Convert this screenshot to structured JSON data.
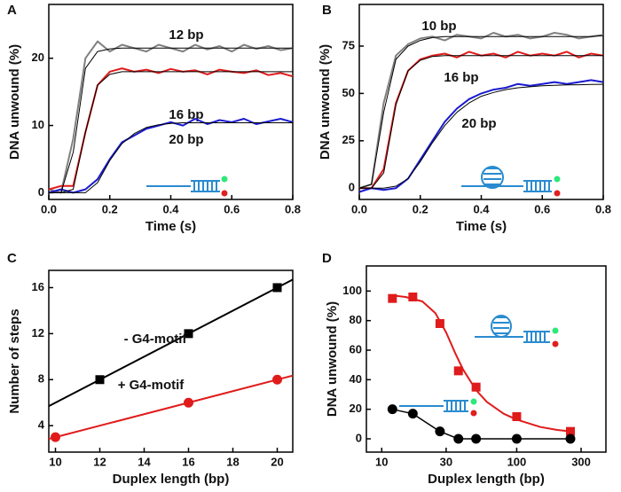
{
  "chart_data": [
    {
      "type": "line",
      "label": "A",
      "xlabel": "Time (s)",
      "ylabel": "DNA unwound (%)",
      "xlim": [
        0,
        0.8
      ],
      "ylim": [
        -1,
        28
      ],
      "xticks": [
        {
          "value": 0,
          "label": "0.0"
        },
        0.2,
        0.4,
        0.6,
        0.8
      ],
      "yticks": [
        0,
        10,
        20
      ],
      "x": [
        0,
        0.04,
        0.08,
        0.12,
        0.16,
        0.2,
        0.24,
        0.28,
        0.32,
        0.36,
        0.4,
        0.44,
        0.48,
        0.52,
        0.56,
        0.6,
        0.64,
        0.68,
        0.72,
        0.76,
        0.8
      ],
      "series": [
        {
          "name": "12 bp",
          "color": "#808080",
          "values": [
            0.5,
            0,
            8,
            20,
            22.5,
            21,
            22,
            21.5,
            21,
            22,
            21.5,
            21,
            22,
            21.3,
            21.8,
            21,
            22,
            21.4,
            21.8,
            21.2,
            21.5
          ]
        },
        {
          "name": "16 bp",
          "color": "#e01b1b",
          "values": [
            0.5,
            1,
            1,
            9,
            16,
            18,
            18.5,
            18,
            18.3,
            17.8,
            18.4,
            18,
            18.2,
            17.6,
            18.3,
            18,
            17.8,
            18.2,
            17.5,
            17.8,
            17.3
          ]
        },
        {
          "name": "20 bp",
          "color": "#1a1ad0",
          "values": [
            0,
            0.5,
            0,
            0.5,
            2,
            5,
            7.5,
            8.5,
            9.5,
            10,
            10.5,
            10,
            11,
            10.2,
            10.8,
            10.5,
            11,
            10.2,
            10.6,
            11,
            10.5
          ]
        },
        {
          "color": "#000000",
          "values": [
            0,
            0,
            6,
            18.5,
            21,
            21.4,
            21.5,
            21.5,
            21.5,
            21.5,
            21.5,
            21.5,
            21.5,
            21.5,
            21.5,
            21.5,
            21.5,
            21.5,
            21.5,
            21.5,
            21.5
          ]
        },
        {
          "color": "#000000",
          "values": [
            0,
            0,
            0.5,
            9,
            16,
            17.6,
            18,
            18,
            18,
            18,
            18,
            18,
            18,
            18,
            18,
            18,
            18,
            18,
            18,
            18,
            18
          ]
        },
        {
          "color": "#000000",
          "values": [
            0,
            0,
            0,
            0,
            1.5,
            4.8,
            7.3,
            8.8,
            9.7,
            10.1,
            10.3,
            10.4,
            10.4,
            10.4,
            10.4,
            10.4,
            10.4,
            10.4,
            10.4,
            10.4,
            10.4
          ]
        }
      ]
    },
    {
      "type": "line",
      "label": "B",
      "xlabel": "Time (s)",
      "ylabel": "DNA unwound (%)",
      "xlim": [
        0,
        0.8
      ],
      "ylim": [
        -6,
        97
      ],
      "xticks": [
        {
          "value": 0,
          "label": "0.0"
        },
        0.2,
        0.4,
        0.6,
        0.8
      ],
      "yticks": [
        0,
        25,
        50,
        75
      ],
      "x": [
        0,
        0.04,
        0.08,
        0.12,
        0.16,
        0.2,
        0.24,
        0.28,
        0.32,
        0.36,
        0.4,
        0.44,
        0.48,
        0.52,
        0.56,
        0.6,
        0.64,
        0.68,
        0.72,
        0.76,
        0.8
      ],
      "series": [
        {
          "name": "10 bp",
          "color": "#808080",
          "values": [
            0,
            2,
            45,
            70,
            76,
            79,
            80,
            78,
            81,
            80,
            79,
            82,
            80,
            81,
            79,
            80,
            82,
            81,
            79,
            80,
            81
          ]
        },
        {
          "name": "16 bp",
          "color": "#e01b1b",
          "values": [
            0,
            0,
            10,
            45,
            62,
            68,
            70,
            71,
            69,
            72,
            70,
            71,
            69,
            72,
            70,
            71,
            70,
            72,
            69,
            71,
            70
          ]
        },
        {
          "name": "20 bp",
          "color": "#1a1ad0",
          "values": [
            -2,
            0,
            -1,
            0,
            5,
            15,
            25,
            35,
            42,
            47,
            50,
            52,
            53,
            55,
            54,
            55,
            56,
            55,
            56,
            57,
            56
          ]
        },
        {
          "color": "#000000",
          "values": [
            0,
            2,
            40,
            68,
            75,
            78,
            79.5,
            80,
            80,
            80,
            80,
            80,
            80,
            80,
            80,
            80,
            80,
            80,
            80,
            80,
            80.5
          ]
        },
        {
          "color": "#000000",
          "values": [
            0,
            0,
            8,
            44,
            62,
            67.5,
            69.5,
            70,
            70,
            70,
            70,
            70,
            70,
            70,
            70,
            70,
            70,
            70,
            70,
            70,
            70
          ]
        },
        {
          "color": "#000000",
          "values": [
            0,
            0,
            0,
            1,
            5,
            14,
            24,
            33,
            40,
            45,
            48.5,
            50.5,
            52,
            53,
            53.5,
            54,
            54.3,
            54.5,
            54.6,
            54.7,
            54.8
          ]
        }
      ]
    },
    {
      "type": "line",
      "label": "C",
      "xlabel": "Duplex length (bp)",
      "ylabel": "Number of steps",
      "xlim": [
        9.7,
        20.7
      ],
      "ylim": [
        1.7,
        17.5
      ],
      "xticks": [
        10,
        12,
        14,
        16,
        18,
        20
      ],
      "yticks": [
        4,
        8,
        12,
        16
      ],
      "series": [
        {
          "color": "#000000",
          "x": [
            9.7,
            20.7
          ],
          "values": [
            5.7,
            16.7
          ]
        },
        {
          "color": "#e01b1b",
          "x": [
            9.7,
            20.7
          ],
          "values": [
            2.85,
            8.35
          ]
        },
        {
          "name": "- G4-motif",
          "color": "#000000",
          "marker": "square",
          "line": false,
          "x": [
            12,
            16,
            20
          ],
          "values": [
            8,
            12,
            16
          ]
        },
        {
          "name": "+ G4-motif",
          "color": "#e01b1b",
          "marker": "circle",
          "line": false,
          "x": [
            10,
            16,
            20
          ],
          "values": [
            3,
            6,
            8
          ]
        }
      ]
    },
    {
      "type": "line",
      "label": "D",
      "xlabel": "Duplex length (bp)",
      "ylabel": "DNA unwound (%)",
      "xscale": "log",
      "xlim": [
        7.7,
        458
      ],
      "ylim": [
        -9,
        117
      ],
      "xticks": [
        10,
        30,
        100,
        300
      ],
      "yticks": [
        0,
        20,
        40,
        60,
        80,
        100
      ],
      "series": [
        {
          "color": "#e01b1b",
          "x": [
            12,
            15,
            20,
            25,
            30,
            35,
            40,
            50,
            60,
            80,
            100,
            150,
            200,
            250
          ],
          "values": [
            97,
            96,
            93,
            85,
            72,
            58,
            47,
            33,
            25,
            17,
            13,
            8,
            6,
            5
          ]
        },
        {
          "color": "#e01b1b",
          "marker": "square",
          "line": false,
          "x": [
            12,
            17,
            27,
            37,
            50,
            100,
            250
          ],
          "values": [
            95,
            96,
            78,
            46,
            35,
            15,
            5
          ]
        },
        {
          "color": "#000000",
          "marker": "circle",
          "x": [
            12,
            17,
            27,
            37,
            50,
            100,
            250
          ],
          "values": [
            20,
            17,
            5,
            0,
            0,
            0,
            0
          ]
        }
      ]
    }
  ]
}
